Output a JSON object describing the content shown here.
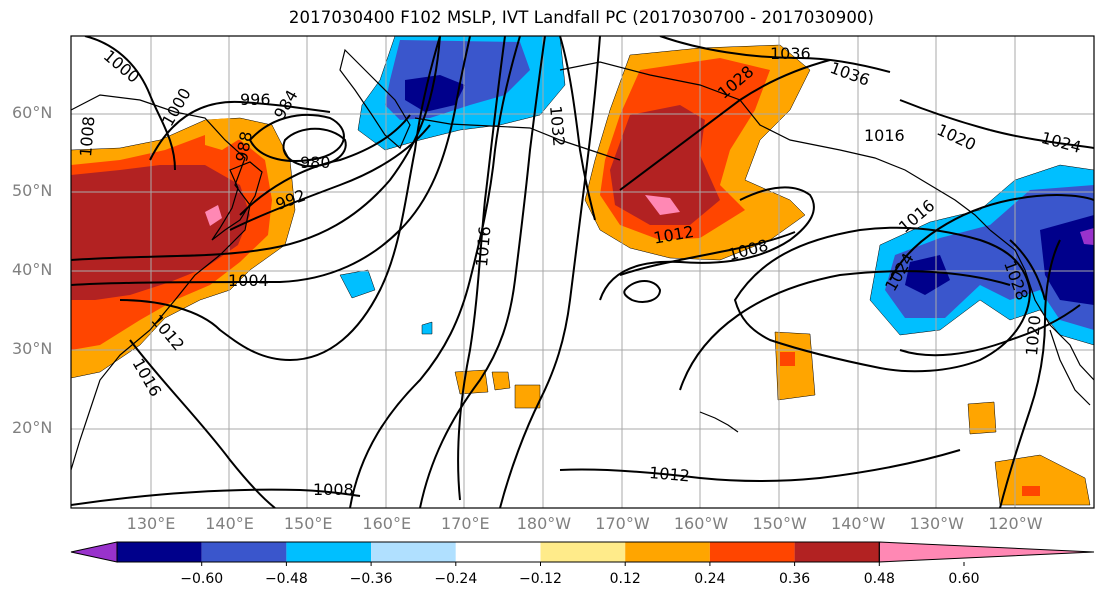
{
  "title": "2017030400 F102 MSLP, IVT Landfall PC (2017030700 - 2017030900)",
  "lat_labels": [
    {
      "text": "60°N",
      "lat": 60
    },
    {
      "text": "50°N",
      "lat": 50
    },
    {
      "text": "40°N",
      "lat": 40
    },
    {
      "text": "30°N",
      "lat": 30
    },
    {
      "text": "20°N",
      "lat": 20
    }
  ],
  "lon_labels": [
    {
      "text": "130°E",
      "lon": 130
    },
    {
      "text": "140°E",
      "lon": 140
    },
    {
      "text": "150°E",
      "lon": 150
    },
    {
      "text": "160°E",
      "lon": 160
    },
    {
      "text": "170°E",
      "lon": 170
    },
    {
      "text": "180°W",
      "lon": 180
    },
    {
      "text": "170°W",
      "lon": 190
    },
    {
      "text": "160°W",
      "lon": 200
    },
    {
      "text": "150°W",
      "lon": 210
    },
    {
      "text": "140°W",
      "lon": 220
    },
    {
      "text": "130°W",
      "lon": 230
    },
    {
      "text": "120°W",
      "lon": 240
    }
  ],
  "colorbar": {
    "colors": [
      "#9932cc",
      "#00008b",
      "#3a56cc",
      "#00bfff",
      "#b0e0ff",
      "#ffffff",
      "#ffeb8a",
      "#ffa500",
      "#ff4500",
      "#b22222",
      "#ff88b4"
    ],
    "labels": [
      "−0.60",
      "−0.48",
      "−0.36",
      "−0.24",
      "−0.12",
      "0.12",
      "0.24",
      "0.36",
      "0.48",
      "0.60"
    ]
  },
  "contour_labels": [
    {
      "text": "1000"
    },
    {
      "text": "996"
    },
    {
      "text": "984"
    },
    {
      "text": "980"
    },
    {
      "text": "1000"
    },
    {
      "text": "1008"
    },
    {
      "text": "992"
    },
    {
      "text": "988"
    },
    {
      "text": "1004"
    },
    {
      "text": "1012"
    },
    {
      "text": "1016"
    },
    {
      "text": "1016"
    },
    {
      "text": "1032"
    },
    {
      "text": "1036"
    },
    {
      "text": "1036"
    },
    {
      "text": "1028"
    },
    {
      "text": "1012"
    },
    {
      "text": "1008"
    },
    {
      "text": "1020"
    },
    {
      "text": "1024"
    },
    {
      "text": "1016"
    },
    {
      "text": "1016"
    },
    {
      "text": "1024"
    },
    {
      "text": "1028"
    },
    {
      "text": "1020"
    },
    {
      "text": "1012"
    },
    {
      "text": "1008"
    }
  ]
}
